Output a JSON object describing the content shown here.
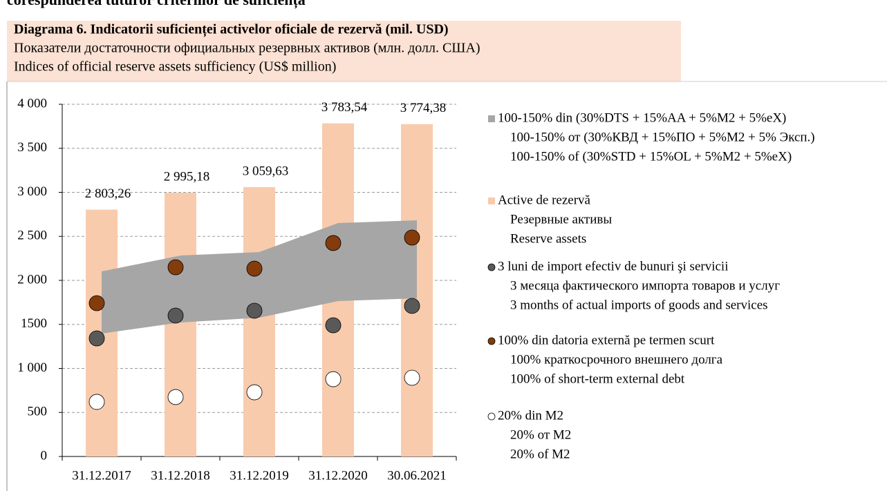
{
  "heading": "corespunderea tuturor criteriilor de suficiență",
  "chart_data": {
    "type": "bar",
    "title": [
      "Diagrama 6. Indicatorii suficienței activelor oficiale de rezervă (mil. USD)",
      "Показатели достаточности официальных резервных активов (млн. долл. США)",
      "Indices of official reserve assets sufficiency (US$ million)"
    ],
    "categories": [
      "31.12.2017",
      "31.12.2018",
      "31.12.2019",
      "31.12.2020",
      "30.06.2021"
    ],
    "ylim": [
      0,
      4000
    ],
    "yticks": [
      0,
      500,
      {
        "value": 1000,
        "label": "1 000"
      },
      1500,
      {
        "value": 2000,
        "label": "2 000"
      },
      {
        "value": 2500,
        "label": "2 500"
      },
      {
        "value": 3000,
        "label": "3 000"
      },
      {
        "value": 3500,
        "label": "3 500"
      },
      {
        "value": 4000,
        "label": "4 000"
      }
    ],
    "grid": true,
    "series": [
      {
        "type": "range",
        "name": [
          "100-150% din (30%DTS + 15%AA + 5%M2 + 5%eX)",
          "100-150% от (30%КВД  + 15%ПО + 5%M2 + 5% Эксп.)",
          "100-150% of (30%STD + 15%OL + 5%M2 + 5%eX)"
        ],
        "color": "#a6a6a6",
        "low": [
          1396,
          1522,
          1576,
          1765,
          1796
        ],
        "high": [
          2102,
          2282,
          2322,
          2651,
          2682
        ]
      },
      {
        "type": "bar",
        "name": [
          "Active de rezervă",
          "Резервные активы",
          "Reserve assets"
        ],
        "color": "#f8cbad",
        "values": [
          2803.26,
          2995.18,
          3059.63,
          3783.54,
          3774.38
        ],
        "value_labels": [
          "2 803,26",
          "2 995,18",
          "3 059,63",
          "3 783,54",
          "3 774,38"
        ]
      },
      {
        "type": "dot",
        "name": [
          "3 luni de import efectiv de bunuri şi servicii",
          "3 месяца фактического импорта товаров и услуг",
          "3 months of actual imports of goods and services"
        ],
        "color": "#595959",
        "values": [
          1341,
          1600,
          1655,
          1490,
          1710
        ]
      },
      {
        "type": "dot",
        "name": [
          "100% din datoria externă pe termen scurt",
          "100% краткосрочного внешнего долга",
          "100% of short-term external debt"
        ],
        "color": "#843c0c",
        "values": [
          1741,
          2149,
          2133,
          2424,
          2486
        ]
      },
      {
        "type": "dot",
        "name": [
          "20% din M2",
          "20% от M2",
          "20% of M2"
        ],
        "color": "#ffffff",
        "values": [
          620,
          675,
          729,
          878,
          894
        ]
      }
    ]
  }
}
